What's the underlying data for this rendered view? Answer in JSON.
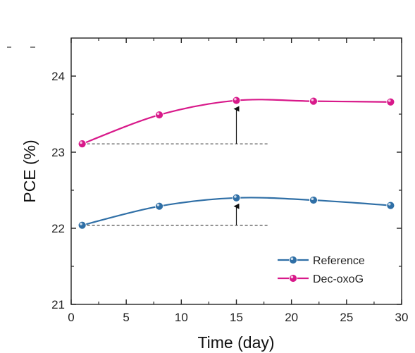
{
  "chart_data": {
    "type": "line",
    "xlabel": "Time (day)",
    "ylabel": "PCE (%)",
    "xlim": [
      0,
      30
    ],
    "ylim": [
      21,
      24.5
    ],
    "xticks": [
      0,
      5,
      10,
      15,
      20,
      25,
      30
    ],
    "yticks": [
      21,
      22,
      23,
      24
    ],
    "grid": false,
    "legend_position": "bottom-right",
    "series": [
      {
        "name": "Reference",
        "color": "#2f6fa6",
        "x": [
          1,
          8,
          15,
          22,
          29
        ],
        "values": [
          22.04,
          22.29,
          22.4,
          22.37,
          22.3
        ]
      },
      {
        "name": "Dec-oxoG",
        "color": "#d8198a",
        "x": [
          1,
          8,
          15,
          22,
          29
        ],
        "values": [
          23.11,
          23.49,
          23.68,
          23.67,
          23.66
        ]
      }
    ],
    "annotations": [
      {
        "type": "dashed-baseline",
        "y": 22.04,
        "x_from": 1,
        "x_to": 18
      },
      {
        "type": "dashed-baseline",
        "y": 23.11,
        "x_from": 1,
        "x_to": 18
      },
      {
        "type": "arrow",
        "x": 15,
        "y_from": 22.04,
        "y_to": 22.4
      },
      {
        "type": "arrow",
        "x": 15,
        "y_from": 23.11,
        "y_to": 23.68
      }
    ]
  }
}
